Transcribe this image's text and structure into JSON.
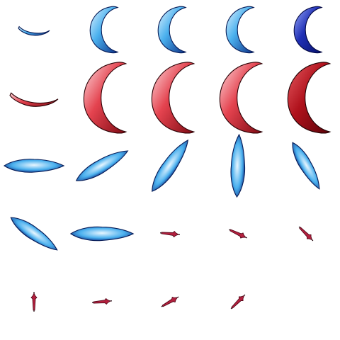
{
  "grid": {
    "rows": 5,
    "cols": 5
  },
  "palette": {
    "blue": {
      "light": "#e8f6ff",
      "mid": "#4ab0ee",
      "dark": "#0b2f86",
      "edge": "#061a55"
    },
    "navy": {
      "light": "#9fb0ff",
      "mid": "#1f2fb5",
      "dark": "#06106b",
      "edge": "#020842"
    },
    "red": {
      "light": "#ffe0e3",
      "mid": "#e4434f",
      "dark": "#7e0a12",
      "edge": "#2b0004"
    },
    "darkred": {
      "light": "#e85d64",
      "mid": "#b0121c",
      "dark": "#5a0309",
      "edge": "#1e0002"
    },
    "small": {
      "mid": "#b3203e",
      "dark": "#4a0515",
      "edge": "#1a0007"
    }
  },
  "sprites": [
    {
      "row": 0,
      "col": 0,
      "kind": "smile",
      "color": "blue",
      "rotation": 0,
      "scale": 0.55
    },
    {
      "row": 0,
      "col": 1,
      "kind": "crescent",
      "color": "blue",
      "rotation": 0,
      "scale": 0.85
    },
    {
      "row": 0,
      "col": 2,
      "kind": "crescent",
      "color": "blue",
      "rotation": 0,
      "scale": 0.85
    },
    {
      "row": 0,
      "col": 3,
      "kind": "crescent",
      "color": "blue",
      "rotation": 0,
      "scale": 0.85
    },
    {
      "row": 0,
      "col": 4,
      "kind": "crescent",
      "color": "navy",
      "rotation": 0,
      "scale": 0.85
    },
    {
      "row": 1,
      "col": 0,
      "kind": "smile",
      "color": "red",
      "rotation": 0,
      "scale": 0.85
    },
    {
      "row": 1,
      "col": 1,
      "kind": "crescent",
      "color": "red",
      "rotation": 0,
      "scale": 1.3
    },
    {
      "row": 1,
      "col": 2,
      "kind": "crescent",
      "color": "red",
      "rotation": 0,
      "scale": 1.3
    },
    {
      "row": 1,
      "col": 3,
      "kind": "crescent",
      "color": "red",
      "rotation": 0,
      "scale": 1.3
    },
    {
      "row": 1,
      "col": 4,
      "kind": "crescent",
      "color": "darkred",
      "rotation": 0,
      "scale": 1.3
    },
    {
      "row": 2,
      "col": 0,
      "kind": "blob",
      "color": "blue",
      "rotation": 0,
      "scale": 1.0
    },
    {
      "row": 2,
      "col": 1,
      "kind": "blob",
      "color": "blue",
      "rotation": -30,
      "scale": 1.0
    },
    {
      "row": 2,
      "col": 2,
      "kind": "blob",
      "color": "blue",
      "rotation": -55,
      "scale": 1.05
    },
    {
      "row": 2,
      "col": 3,
      "kind": "blob",
      "color": "blue",
      "rotation": -88,
      "scale": 1.05
    },
    {
      "row": 2,
      "col": 4,
      "kind": "blob",
      "color": "blue",
      "rotation": 60,
      "scale": 0.9
    },
    {
      "row": 3,
      "col": 0,
      "kind": "blob",
      "color": "blue",
      "rotation": 35,
      "scale": 0.95
    },
    {
      "row": 3,
      "col": 1,
      "kind": "blob",
      "color": "blue",
      "rotation": 0,
      "scale": 1.05
    },
    {
      "row": 3,
      "col": 2,
      "kind": "tiny",
      "color": "small",
      "rotation": 5,
      "scale": 1.0
    },
    {
      "row": 3,
      "col": 3,
      "kind": "tiny",
      "color": "small",
      "rotation": 25,
      "scale": 1.0
    },
    {
      "row": 3,
      "col": 4,
      "kind": "tiny",
      "color": "small",
      "rotation": 45,
      "scale": 1.0
    },
    {
      "row": 4,
      "col": 0,
      "kind": "tiny",
      "color": "small",
      "rotation": -90,
      "scale": 1.0
    },
    {
      "row": 4,
      "col": 1,
      "kind": "tiny",
      "color": "small",
      "rotation": -5,
      "scale": 1.0
    },
    {
      "row": 4,
      "col": 2,
      "kind": "tiny",
      "color": "small",
      "rotation": -30,
      "scale": 1.0
    },
    {
      "row": 4,
      "col": 3,
      "kind": "tiny",
      "color": "small",
      "rotation": -45,
      "scale": 1.0
    }
  ]
}
